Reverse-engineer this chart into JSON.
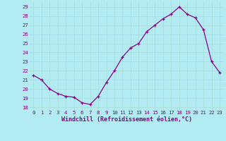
{
  "x": [
    0,
    1,
    2,
    3,
    4,
    5,
    6,
    7,
    8,
    9,
    10,
    11,
    12,
    13,
    14,
    15,
    16,
    17,
    18,
    19,
    20,
    21,
    22,
    23
  ],
  "y": [
    21.5,
    21.0,
    20.0,
    19.5,
    19.2,
    19.1,
    18.5,
    18.3,
    19.2,
    20.7,
    22.0,
    23.5,
    24.5,
    25.0,
    26.3,
    27.0,
    27.7,
    28.2,
    29.0,
    28.2,
    27.8,
    26.5,
    23.0,
    21.8
  ],
  "line_color": "#8B008B",
  "marker": "+",
  "bg_color": "#b2ebf2",
  "grid_color": "#aadddd",
  "xlabel": "Windchill (Refroidissement éolien,°C)",
  "xlabel_color": "#8B008B",
  "ylabel_ticks": [
    18,
    19,
    20,
    21,
    22,
    23,
    24,
    25,
    26,
    27,
    28,
    29
  ],
  "ylim": [
    17.7,
    29.6
  ],
  "xlim": [
    -0.5,
    23.5
  ],
  "tick_color": "#8B008B",
  "tick_fontsize": 5.2,
  "xlabel_fontsize": 6.0
}
